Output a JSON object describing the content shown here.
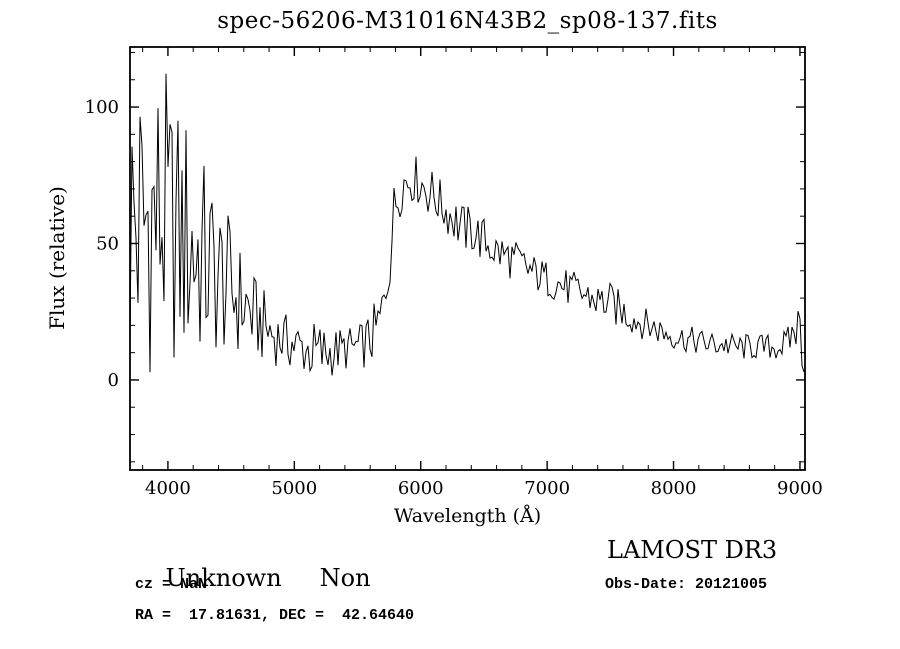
{
  "chart_data": {
    "type": "line",
    "title": "spec-56206-M31016N43B2_sp08-137.fits",
    "xlabel": "Wavelength (Å)",
    "ylabel": "Flux (relative)",
    "xlim": [
      3700,
      9040
    ],
    "ylim": [
      -33,
      122
    ],
    "x_ticks": [
      4000,
      5000,
      6000,
      7000,
      8000,
      9000
    ],
    "y_ticks": [
      0,
      50,
      100
    ],
    "x_minor_step": 200,
    "y_minor_step": 10,
    "grid": false,
    "legend": "none",
    "series": [
      {
        "name": "flux",
        "x": [
          3700,
          3750,
          3800,
          3850,
          3900,
          3950,
          4000,
          4050,
          4100,
          4150,
          4200,
          4250,
          4300,
          4350,
          4400,
          4450,
          4500,
          4550,
          4600,
          4650,
          4700,
          4750,
          4800,
          4850,
          4900,
          4950,
          5000,
          5050,
          5100,
          5150,
          5200,
          5250,
          5300,
          5350,
          5400,
          5450,
          5500,
          5550,
          5600,
          5650,
          5700,
          5750,
          5800,
          5850,
          5900,
          5950,
          6000,
          6050,
          6100,
          6150,
          6200,
          6250,
          6300,
          6350,
          6400,
          6450,
          6500,
          6550,
          6600,
          6700,
          6800,
          6900,
          7000,
          7100,
          7200,
          7300,
          7400,
          7500,
          7600,
          7700,
          7800,
          7900,
          8000,
          8100,
          8200,
          8300,
          8400,
          8500,
          8600,
          8700,
          8800,
          8900,
          8950,
          9000,
          9020,
          9040
        ],
        "mean": [
          55,
          58,
          55,
          60,
          58,
          62,
          55,
          54,
          50,
          52,
          48,
          45,
          42,
          40,
          38,
          36,
          33,
          30,
          28,
          25,
          22,
          20,
          18,
          16,
          15,
          14,
          13,
          12,
          11,
          10,
          9,
          10,
          10,
          11,
          11,
          12,
          12,
          13,
          15,
          18,
          25,
          45,
          65,
          72,
          73,
          74,
          72,
          70,
          68,
          65,
          62,
          60,
          57,
          55,
          55,
          53,
          51,
          49,
          47,
          45,
          42,
          39,
          37,
          35,
          33,
          31,
          29,
          28,
          25,
          22,
          20,
          18,
          16,
          15,
          14,
          13,
          13,
          12,
          12,
          12,
          12,
          13,
          18,
          20,
          10,
          5
        ],
        "noise_amp": [
          60,
          65,
          60,
          60,
          55,
          60,
          55,
          50,
          50,
          48,
          45,
          40,
          38,
          35,
          30,
          28,
          25,
          22,
          20,
          18,
          15,
          14,
          12,
          11,
          10,
          10,
          10,
          10,
          10,
          12,
          14,
          10,
          9,
          9,
          8,
          8,
          8,
          9,
          10,
          12,
          12,
          15,
          12,
          10,
          9,
          9,
          9,
          10,
          9,
          9,
          9,
          9,
          10,
          9,
          9,
          9,
          9,
          8,
          8,
          8,
          8,
          7,
          7,
          7,
          7,
          7,
          7,
          8,
          7,
          6,
          6,
          6,
          5,
          5,
          5,
          5,
          5,
          5,
          5,
          5,
          5,
          6,
          8,
          10,
          8,
          4
        ]
      }
    ]
  },
  "annotations": {
    "class": "Unknown",
    "subclass": "Non",
    "survey": "LAMOST DR3",
    "cz": "cz = NaN",
    "obs_date": "Obs-Date: 20121005",
    "ra_dec": "RA =  17.81631, DEC =  42.64640"
  },
  "colors": {
    "line": "#000000",
    "background": "#ffffff",
    "frame": "#000000"
  }
}
